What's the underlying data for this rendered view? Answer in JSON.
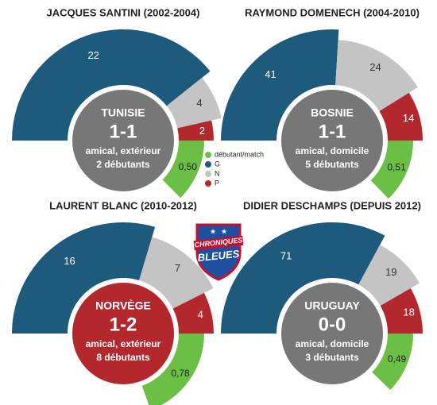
{
  "chart_data": [
    {
      "type": "half-donut",
      "title": "JACQUES SANTINI (2002-2004)",
      "values": [
        22,
        4,
        2
      ],
      "debutants_per_match": 0.5,
      "debutants_label": "0,50",
      "center": {
        "opponent": "TUNISIE",
        "score": "1-1",
        "match": "amical, extérieur",
        "debutants": "2 débutants",
        "color": "#777777"
      }
    },
    {
      "type": "half-donut",
      "title": "RAYMOND DOMENECH (2004-2010)",
      "values": [
        41,
        24,
        14
      ],
      "debutants_per_match": 0.51,
      "debutants_label": "0,51",
      "center": {
        "opponent": "BOSNIE",
        "score": "1-1",
        "match": "amical, domicile",
        "debutants": "5 débutants",
        "color": "#777777"
      }
    },
    {
      "type": "half-donut",
      "title": "LAURENT BLANC (2010-2012)",
      "values": [
        16,
        7,
        4
      ],
      "debutants_per_match": 0.78,
      "debutants_label": "0,78",
      "center": {
        "opponent": "NORVÈGE",
        "score": "1-2",
        "match": "amical, extérieur",
        "debutants": "8 débutants",
        "color": "#b3282d"
      }
    },
    {
      "type": "half-donut",
      "title": "DIDIER DESCHAMPS (DEPUIS 2012)",
      "values": [
        71,
        19,
        18
      ],
      "debutants_per_match": 0.49,
      "debutants_label": "0,49",
      "center": {
        "opponent": "URUGUAY",
        "score": "0-0",
        "match": "amical, domicile",
        "debutants": "3 débutants",
        "color": "#777777"
      }
    }
  ],
  "legend": {
    "labels": [
      "débutant/match",
      "G",
      "N",
      "P"
    ],
    "colors": [
      "#6cbf45",
      "#1e5a7c",
      "#c4c4c4",
      "#b3282d"
    ]
  },
  "logo": {
    "line1": "CHRONIQUES",
    "line2": "BLEUES"
  }
}
